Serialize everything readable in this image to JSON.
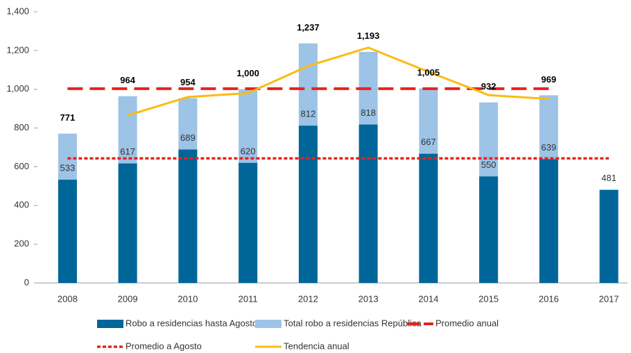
{
  "chart_data": {
    "type": "bar",
    "categories": [
      "2008",
      "2009",
      "2010",
      "2011",
      "2012",
      "2013",
      "2014",
      "2015",
      "2016",
      "2017"
    ],
    "ylim": [
      0,
      1400
    ],
    "yticks": [
      0,
      200,
      400,
      600,
      800,
      {
        "value": 1000,
        "label": "1,000"
      },
      {
        "value": 1200,
        "label": "1,200"
      },
      {
        "value": 1400,
        "label": "1,400"
      }
    ],
    "series": [
      {
        "name": "Robo a residencias hasta Agosto",
        "kind": "bar",
        "color": "#00669a",
        "values": [
          533,
          617,
          689,
          620,
          812,
          818,
          667,
          550,
          639,
          481
        ]
      },
      {
        "name": "Total robo a residencias República",
        "kind": "bar",
        "color": "#9dc3e6",
        "values": [
          771,
          964,
          954,
          1000,
          1237,
          1193,
          1005,
          932,
          969,
          null
        ],
        "value_labels": [
          "771",
          "964",
          "954",
          "1,000",
          "1,237",
          "1,193",
          "1,005",
          "932",
          "969",
          null
        ]
      },
      {
        "name": "Promedio anual",
        "kind": "line",
        "dash": "dashed",
        "color": "#e8221c",
        "values": [
          1003,
          1003,
          1003,
          1003,
          1003,
          1003,
          1003,
          1003,
          1003,
          null
        ]
      },
      {
        "name": "Promedio a Agosto",
        "kind": "line",
        "dash": "dotted",
        "color": "#e8221c",
        "values": [
          643,
          643,
          643,
          643,
          643,
          643,
          643,
          643,
          643,
          643
        ]
      },
      {
        "name": "Tendencia anual",
        "kind": "line",
        "dash": "solid",
        "color": "#fbbb10",
        "values": [
          null,
          865,
          960,
          980,
          1120,
          1215,
          1090,
          970,
          950,
          null
        ]
      }
    ]
  }
}
